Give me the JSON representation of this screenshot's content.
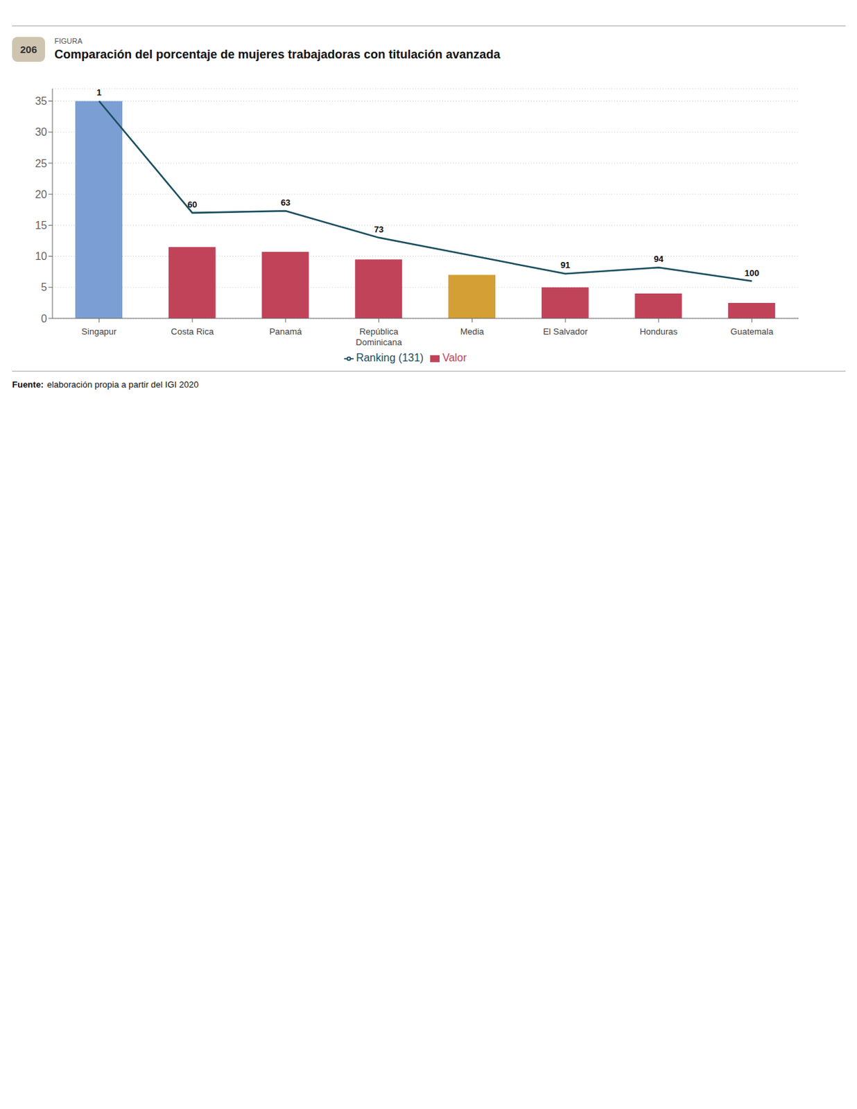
{
  "chart_data": {
    "type": "bar",
    "title": "Comparación del porcentaje de mujeres trabajadoras con titulación avanzada",
    "figure_label": "FIGURA",
    "figure_number": "206",
    "categories": [
      "Singapur",
      "Costa Rica",
      "Panamá",
      "República\nDominicana",
      "Media",
      "El Salvador",
      "Honduras",
      "Guatemala"
    ],
    "series": [
      {
        "name": "Valor",
        "type": "bar",
        "color": "#c0435a",
        "colors": [
          "#7b9fd4",
          "#c0435a",
          "#c0435a",
          "#c0435a",
          "#d4a035",
          "#c0435a",
          "#c0435a",
          "#c0435a"
        ],
        "values": [
          35,
          11.5,
          10.7,
          9.5,
          7.0,
          5.0,
          4.0,
          2.5
        ]
      },
      {
        "name": "Ranking (131)",
        "type": "line",
        "color": "#1a4f5e",
        "values": [
          35,
          17.0,
          17.3,
          13.0,
          null,
          7.2,
          8.2,
          6.0
        ]
      }
    ],
    "annotations": [
      {
        "text": "1",
        "x": "Singapur",
        "y": 35
      },
      {
        "text": "60",
        "x": "Costa Rica",
        "y": 17.0
      },
      {
        "text": "63",
        "x": "Panamá",
        "y": 17.3
      },
      {
        "text": "73",
        "x": "República\nDominicana",
        "y": 13.0
      },
      {
        "text": "91",
        "x": "El Salvador",
        "y": 7.2
      },
      {
        "text": "94",
        "x": "Honduras",
        "y": 8.2
      },
      {
        "text": "100",
        "x": "Guatemala",
        "y": 6.0
      }
    ],
    "ylim": [
      0,
      37
    ],
    "yticks": [
      0,
      5,
      10,
      15,
      20,
      25,
      30,
      35
    ],
    "grid": true,
    "legend": "bottom",
    "source_label": "Fuente:",
    "source": "elaboración propia a partir del IGI 2020"
  }
}
